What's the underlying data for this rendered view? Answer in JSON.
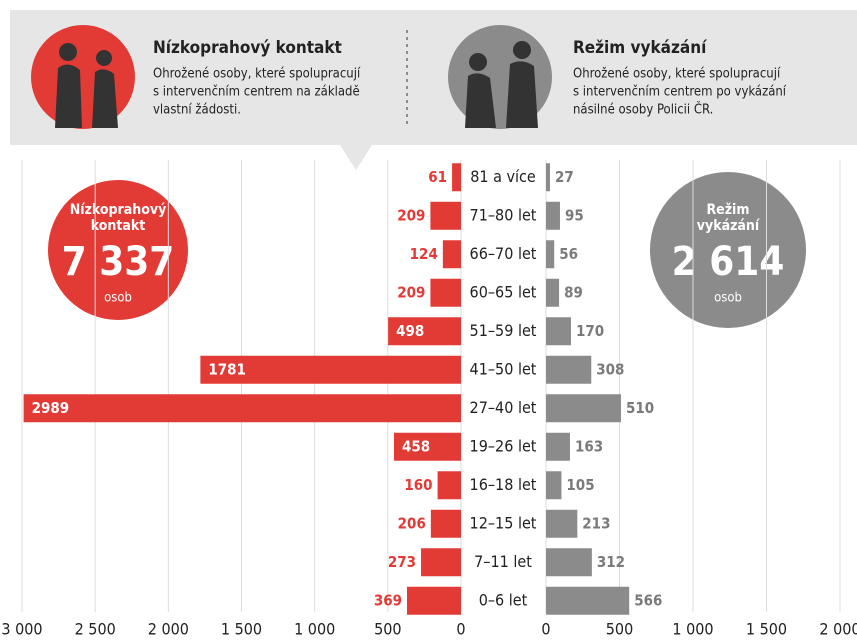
{
  "panels": [
    {
      "description": [
        "Ohrožené osoby, které spolupracují",
        "s intervenčním centrem na základě",
        "vlastní žádosti."
      ],
      "circle_label": [
        "Nízkoprahový",
        "kontakt"
      ],
      "total": "7 337",
      "unit": "osob"
    },
    {
      "description": [
        "Ohrožené osoby, které spolupracují",
        "s intervenčním centrem po vykázání",
        "násilné osoby Policii ČR."
      ],
      "circle_label": [
        "Režim",
        "vykázání"
      ],
      "total": "2 614",
      "unit": "osob"
    }
  ],
  "chart_data": {
    "type": "butterfly",
    "categories": [
      "81 a více",
      "71–80 let",
      "66–70 let",
      "60–65 let",
      "51–59 let",
      "41–50 let",
      "27–40 let",
      "19–26 let",
      "16–18 let",
      "12–15 let",
      "7–11 let",
      "0–6 let"
    ],
    "series": [
      {
        "name": "Nízkoprahový kontakt",
        "color": "#e23b36",
        "side": "left",
        "values": [
          61,
          209,
          124,
          209,
          498,
          1781,
          2989,
          458,
          160,
          206,
          273,
          369
        ],
        "xlim": [
          0,
          3000
        ],
        "xticks": [
          {
            "value": 3000,
            "label": "3 000"
          },
          {
            "value": 2500,
            "label": "2 500"
          },
          {
            "value": 2000,
            "label": "2 000"
          },
          {
            "value": 1500,
            "label": "1 500"
          },
          {
            "value": 1000,
            "label": "1 000"
          },
          500,
          0
        ]
      },
      {
        "name": "Režim vykázání",
        "color": "#8b8b8b",
        "side": "right",
        "values": [
          27,
          95,
          56,
          89,
          170,
          308,
          510,
          163,
          105,
          213,
          312,
          566
        ],
        "xlim": [
          0,
          2000
        ],
        "xticks": [
          0,
          500,
          {
            "value": 1000,
            "label": "1 000"
          },
          {
            "value": 1500,
            "label": "1 500"
          },
          {
            "value": 2000,
            "label": "2 000"
          }
        ]
      }
    ]
  }
}
